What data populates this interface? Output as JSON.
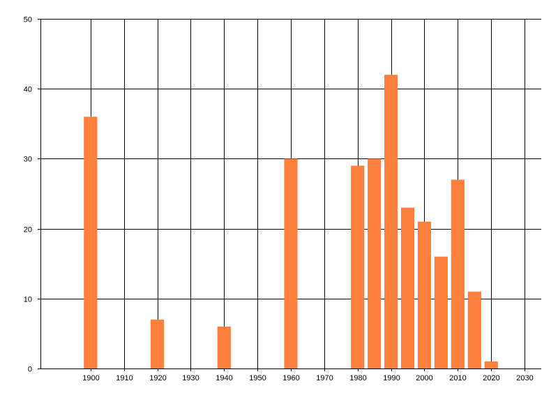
{
  "chart_data": {
    "type": "bar",
    "title": "",
    "xlabel": "",
    "ylabel": "",
    "x": [
      1900,
      1920,
      1940,
      1960,
      1980,
      1985,
      1990,
      1995,
      2000,
      2005,
      2010,
      2015,
      2020
    ],
    "values": [
      36,
      7,
      6,
      30,
      29,
      30,
      42,
      23,
      21,
      16,
      27,
      11,
      1
    ],
    "xlim": [
      1885,
      2035
    ],
    "ylim": [
      0,
      50
    ],
    "bar_width": 4,
    "x_ticks": [
      "1900",
      "1910",
      "1920",
      "1930",
      "1940",
      "1950",
      "1960",
      "1970",
      "1980",
      "1990",
      "2000",
      "2010",
      "2020",
      "2030"
    ],
    "y_ticks": [
      "0",
      "10",
      "20",
      "30",
      "40",
      "50"
    ],
    "grid": true,
    "bar_color": "#ff7f3f",
    "grid_color": "#000000"
  }
}
